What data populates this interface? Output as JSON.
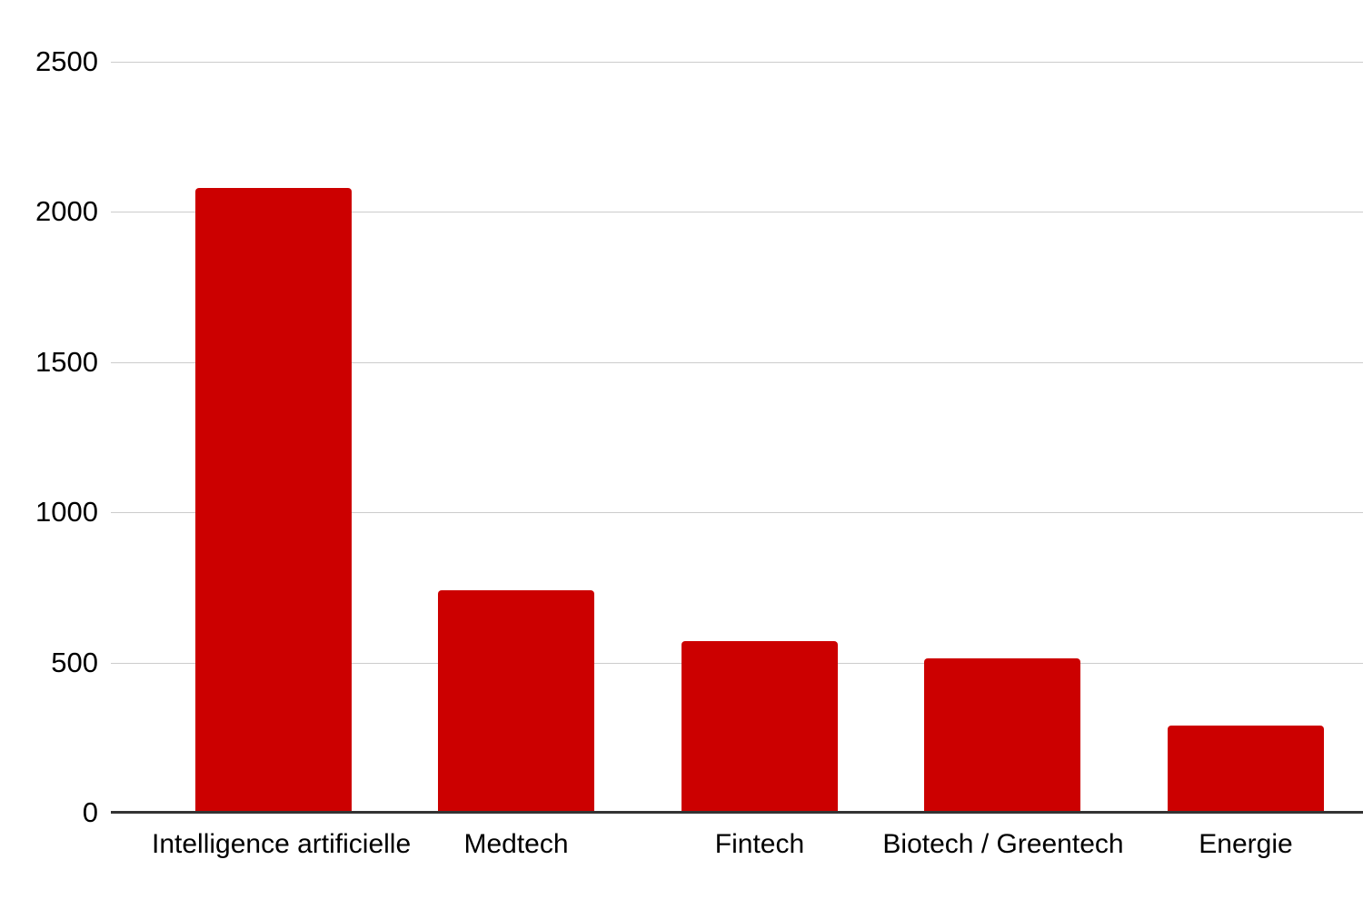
{
  "chart_data": {
    "type": "bar",
    "title": "",
    "xlabel": "",
    "ylabel": "",
    "categories": [
      "Intelligence artificielle",
      "Medtech",
      "Fintech",
      "Biotech / Greentech",
      "Energie"
    ],
    "values": [
      2080,
      740,
      570,
      515,
      290
    ],
    "ylim": [
      0,
      2500
    ],
    "y_ticks": [
      0,
      500,
      1000,
      1500,
      2000,
      2500
    ],
    "grid": "horizontal",
    "legend_position": "none",
    "colors": {
      "bar": "#cc0000",
      "gridline": "#cccccc",
      "axis_baseline": "#333333",
      "label_text": "#000000",
      "background": "#ffffff"
    }
  }
}
